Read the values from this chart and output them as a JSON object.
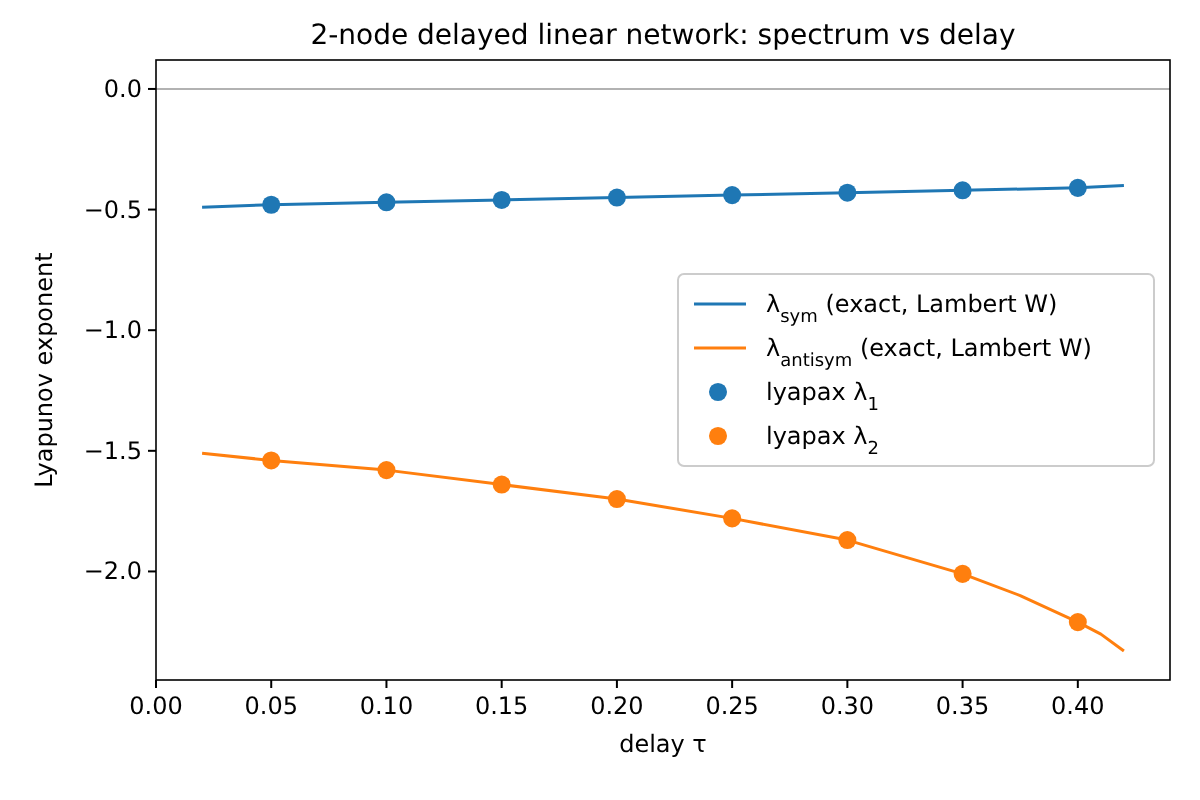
{
  "chart_data": {
    "type": "line",
    "title": "2-node delayed linear network: spectrum vs delay",
    "xlabel": "delay τ",
    "ylabel": "Lyapunov exponent",
    "xlim": [
      0,
      0.44
    ],
    "xticks": [
      {
        "value": 0,
        "label": "0.00"
      },
      {
        "value": 0.05,
        "label": "0.05"
      },
      {
        "value": 0.1,
        "label": "0.10"
      },
      {
        "value": 0.15,
        "label": "0.15"
      },
      {
        "value": 0.2,
        "label": "0.20"
      },
      {
        "value": 0.25,
        "label": "0.25"
      },
      {
        "value": 0.3,
        "label": "0.30"
      },
      {
        "value": 0.35,
        "label": "0.35"
      },
      {
        "value": 0.4,
        "label": "0.40"
      }
    ],
    "ylim": [
      -2.45,
      0.12
    ],
    "yticks": [
      {
        "value": -2,
        "label": "−2.0"
      },
      {
        "value": -1.5,
        "label": "−1.5"
      },
      {
        "value": -1,
        "label": "−1.0"
      },
      {
        "value": -0.5,
        "label": "−0.5"
      },
      {
        "value": 0,
        "label": "0.0"
      }
    ],
    "grid": false,
    "legend": "center right",
    "ref_lines": [
      {
        "axis": "y",
        "value": 0,
        "color": "#999999"
      }
    ],
    "series": [
      {
        "name": "λ$_{sym}$ (exact, Lambert W)",
        "color": "#1f77b4",
        "x": [
          0.02,
          0.05,
          0.1,
          0.15,
          0.2,
          0.25,
          0.3,
          0.35,
          0.4,
          0.42
        ],
        "values": [
          -0.49,
          -0.48,
          -0.47,
          -0.46,
          -0.45,
          -0.44,
          -0.43,
          -0.42,
          -0.41,
          -0.4
        ]
      },
      {
        "name": "λ$_{antisym}$ (exact, Lambert W)",
        "color": "#ff7f0e",
        "x": [
          0.02,
          0.05,
          0.1,
          0.15,
          0.2,
          0.25,
          0.3,
          0.35,
          0.375,
          0.4,
          0.41,
          0.42
        ],
        "values": [
          -1.51,
          -1.54,
          -1.58,
          -1.64,
          -1.7,
          -1.78,
          -1.87,
          -2.01,
          -2.1,
          -2.21,
          -2.26,
          -2.33
        ]
      },
      {
        "type": "scatter",
        "name": "lyapax λ$_{1}$",
        "color": "#1f77b4",
        "marker": "circle",
        "x": [
          0.05,
          0.1,
          0.15,
          0.2,
          0.25,
          0.3,
          0.35,
          0.4
        ],
        "values": [
          -0.48,
          -0.47,
          -0.46,
          -0.45,
          -0.44,
          -0.43,
          -0.42,
          -0.41
        ]
      },
      {
        "type": "scatter",
        "name": "lyapax λ$_{2}$",
        "color": "#ff7f0e",
        "marker": "circle",
        "x": [
          0.05,
          0.1,
          0.15,
          0.2,
          0.25,
          0.3,
          0.35,
          0.4
        ],
        "values": [
          -1.54,
          -1.58,
          -1.64,
          -1.7,
          -1.78,
          -1.87,
          -2.01,
          -2.21
        ]
      }
    ]
  }
}
